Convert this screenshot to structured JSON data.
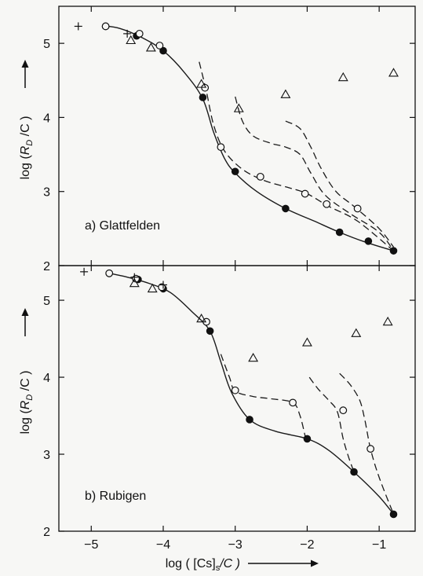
{
  "figure": {
    "xlabel": "log ( [Cs]s/C )",
    "xlabel_parts": {
      "pre": "log ( [Cs]",
      "sub": "s",
      "post": "/C )"
    },
    "ylabel_parts": {
      "pre": "log (",
      "main": "R",
      "sub": "D",
      "post": " /C )"
    },
    "arrow": "→"
  },
  "chart_data": [
    {
      "type": "scatter",
      "panel": "top",
      "label": "a) Glattfelden",
      "xlim": [
        -5.45,
        -0.5
      ],
      "ylim": [
        2,
        5.5
      ],
      "xticks": [
        -5,
        -4,
        -3,
        -2,
        -1
      ],
      "xtick_labels": [],
      "yticks": [
        2,
        3,
        4,
        5
      ],
      "ytick_labels": [
        "2",
        "3",
        "4",
        "5"
      ],
      "ylabel": "log (RD /C)",
      "grid": false,
      "series": [
        {
          "marker": "filled-circle",
          "points": [
            [
              -4.8,
              5.23
            ],
            [
              -4.37,
              5.1
            ],
            [
              -4.0,
              4.9
            ],
            [
              -3.45,
              4.27
            ],
            [
              -3.0,
              3.27
            ],
            [
              -2.3,
              2.77
            ],
            [
              -1.55,
              2.45
            ],
            [
              -1.15,
              2.33
            ],
            [
              -0.8,
              2.2
            ]
          ]
        },
        {
          "marker": "open-circle",
          "points": [
            [
              -4.8,
              5.23
            ],
            [
              -4.33,
              5.13
            ],
            [
              -4.05,
              4.97
            ],
            [
              -3.42,
              4.4
            ],
            [
              -3.2,
              3.6
            ],
            [
              -2.65,
              3.2
            ],
            [
              -2.03,
              2.97
            ],
            [
              -1.73,
              2.83
            ],
            [
              -1.3,
              2.77
            ]
          ]
        },
        {
          "marker": "triangle",
          "points": [
            [
              -4.45,
              5.04
            ],
            [
              -4.17,
              4.94
            ],
            [
              -3.47,
              4.45
            ],
            [
              -2.95,
              4.12
            ],
            [
              -2.3,
              4.31
            ],
            [
              -1.5,
              4.54
            ],
            [
              -0.8,
              4.6
            ]
          ]
        },
        {
          "marker": "plus",
          "points": [
            [
              -5.18,
              5.23
            ],
            [
              -4.5,
              5.13
            ]
          ]
        },
        {
          "style": "solid",
          "points": [
            [
              -4.85,
              5.24
            ],
            [
              -4.6,
              5.2
            ],
            [
              -4.3,
              5.08
            ],
            [
              -4.0,
              4.9
            ],
            [
              -3.7,
              4.6
            ],
            [
              -3.45,
              4.25
            ],
            [
              -3.3,
              3.8
            ],
            [
              -3.15,
              3.45
            ],
            [
              -3.0,
              3.25
            ],
            [
              -2.7,
              3.0
            ],
            [
              -2.3,
              2.77
            ],
            [
              -1.9,
              2.6
            ],
            [
              -1.55,
              2.45
            ],
            [
              -1.2,
              2.32
            ],
            [
              -0.8,
              2.2
            ]
          ]
        },
        {
          "style": "dashed",
          "points": [
            [
              -3.5,
              4.75
            ],
            [
              -3.4,
              4.35
            ],
            [
              -3.3,
              3.9
            ],
            [
              -3.15,
              3.55
            ],
            [
              -2.9,
              3.3
            ],
            [
              -2.6,
              3.15
            ],
            [
              -2.25,
              3.05
            ],
            [
              -2.0,
              2.97
            ],
            [
              -1.7,
              2.8
            ],
            [
              -1.3,
              2.6
            ],
            [
              -0.8,
              2.2
            ]
          ]
        },
        {
          "style": "dashed",
          "points": [
            [
              -3.0,
              4.28
            ],
            [
              -2.9,
              3.95
            ],
            [
              -2.75,
              3.75
            ],
            [
              -2.5,
              3.65
            ],
            [
              -2.3,
              3.6
            ],
            [
              -2.1,
              3.5
            ],
            [
              -1.95,
              3.25
            ],
            [
              -1.75,
              2.95
            ],
            [
              -1.4,
              2.7
            ],
            [
              -1.0,
              2.45
            ],
            [
              -0.8,
              2.2
            ]
          ]
        },
        {
          "style": "dashed",
          "points": [
            [
              -2.3,
              3.95
            ],
            [
              -2.1,
              3.85
            ],
            [
              -1.95,
              3.6
            ],
            [
              -1.8,
              3.3
            ],
            [
              -1.6,
              3.0
            ],
            [
              -1.35,
              2.8
            ],
            [
              -1.0,
              2.5
            ],
            [
              -0.8,
              2.25
            ]
          ]
        }
      ]
    },
    {
      "type": "scatter",
      "panel": "bottom",
      "label": "b) Rubigen",
      "xlim": [
        -5.45,
        -0.5
      ],
      "ylim": [
        2,
        5.45
      ],
      "xticks": [
        -5,
        -4,
        -3,
        -2,
        -1
      ],
      "xtick_labels": [
        "-5",
        "-4",
        "-3",
        "-2",
        "-1"
      ],
      "yticks": [
        2,
        3,
        4,
        5
      ],
      "ytick_labels": [
        "2",
        "3",
        "4",
        "5"
      ],
      "ylabel": "log (RD /C)",
      "grid": false,
      "series": [
        {
          "marker": "filled-circle",
          "points": [
            [
              -4.75,
              5.35
            ],
            [
              -4.35,
              5.27
            ],
            [
              -4.0,
              5.15
            ],
            [
              -3.35,
              4.6
            ],
            [
              -2.8,
              3.45
            ],
            [
              -2.0,
              3.2
            ],
            [
              -1.35,
              2.77
            ],
            [
              -0.8,
              2.22
            ]
          ]
        },
        {
          "marker": "open-circle",
          "points": [
            [
              -4.75,
              5.35
            ],
            [
              -4.38,
              5.28
            ],
            [
              -4.02,
              5.17
            ],
            [
              -3.4,
              4.72
            ],
            [
              -3.0,
              3.83
            ],
            [
              -2.2,
              3.67
            ],
            [
              -1.5,
              3.57
            ],
            [
              -1.12,
              3.07
            ]
          ]
        },
        {
          "marker": "triangle",
          "points": [
            [
              -4.4,
              5.22
            ],
            [
              -4.15,
              5.15
            ],
            [
              -3.47,
              4.76
            ],
            [
              -2.75,
              4.25
            ],
            [
              -2.0,
              4.45
            ],
            [
              -1.32,
              4.57
            ],
            [
              -0.88,
              4.72
            ]
          ]
        },
        {
          "marker": "plus",
          "points": [
            [
              -5.1,
              5.37
            ],
            [
              -4.4,
              5.3
            ],
            [
              -4.0,
              5.2
            ]
          ]
        },
        {
          "style": "solid",
          "points": [
            [
              -4.8,
              5.36
            ],
            [
              -4.5,
              5.3
            ],
            [
              -4.2,
              5.22
            ],
            [
              -3.9,
              5.1
            ],
            [
              -3.6,
              4.85
            ],
            [
              -3.35,
              4.6
            ],
            [
              -3.2,
              4.2
            ],
            [
              -3.05,
              3.8
            ],
            [
              -2.8,
              3.45
            ],
            [
              -2.45,
              3.3
            ],
            [
              -2.0,
              3.2
            ],
            [
              -1.7,
              3.05
            ],
            [
              -1.35,
              2.77
            ],
            [
              -1.0,
              2.45
            ],
            [
              -0.8,
              2.22
            ]
          ]
        },
        {
          "style": "dashed",
          "points": [
            [
              -3.2,
              4.3
            ],
            [
              -3.08,
              4.0
            ],
            [
              -3.0,
              3.82
            ],
            [
              -2.75,
              3.75
            ],
            [
              -2.5,
              3.72
            ],
            [
              -2.2,
              3.67
            ],
            [
              -2.1,
              3.5
            ],
            [
              -2.02,
              3.2
            ]
          ]
        },
        {
          "style": "dashed",
          "points": [
            [
              -1.97,
              4.0
            ],
            [
              -1.85,
              3.85
            ],
            [
              -1.7,
              3.7
            ],
            [
              -1.58,
              3.55
            ],
            [
              -1.5,
              3.2
            ],
            [
              -1.42,
              2.95
            ],
            [
              -1.35,
              2.77
            ]
          ]
        },
        {
          "style": "dashed",
          "points": [
            [
              -1.55,
              4.05
            ],
            [
              -1.4,
              3.9
            ],
            [
              -1.27,
              3.7
            ],
            [
              -1.2,
              3.45
            ],
            [
              -1.12,
              3.07
            ],
            [
              -1.0,
              2.7
            ],
            [
              -0.8,
              2.22
            ]
          ]
        }
      ]
    }
  ]
}
